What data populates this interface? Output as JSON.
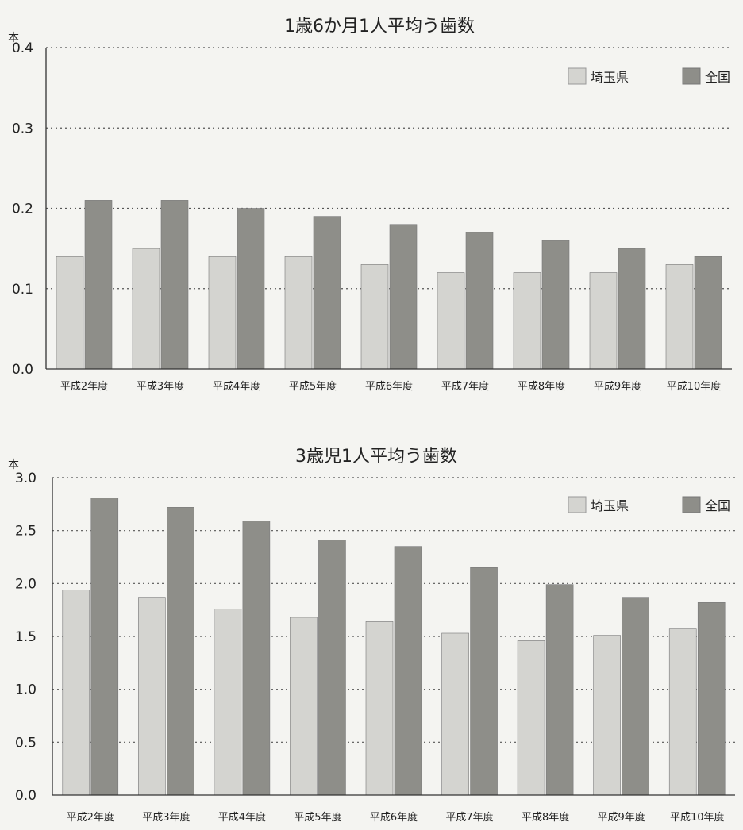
{
  "colors": {
    "saitama": "#d4d4d0",
    "national": "#8e8e89",
    "gridline": "#555555",
    "axis": "#333333",
    "text": "#222222"
  },
  "chart_data": [
    {
      "type": "bar",
      "title": "1歳6か月1人平均う歯数",
      "ylabel": "本",
      "ylim": [
        0,
        0.4
      ],
      "yticks": [
        "0.0",
        "0.1",
        "0.2",
        "0.3",
        "0.4"
      ],
      "grid": true,
      "legend_position": "top-right",
      "categories": [
        "平成2年度",
        "平成3年度",
        "平成4年度",
        "平成5年度",
        "平成6年度",
        "平成7年度",
        "平成8年度",
        "平成9年度",
        "平成10年度"
      ],
      "series": [
        {
          "name": "埼玉県",
          "values": [
            0.14,
            0.15,
            0.14,
            0.14,
            0.13,
            0.12,
            0.12,
            0.12,
            0.13
          ]
        },
        {
          "name": "全国",
          "values": [
            0.21,
            0.21,
            0.2,
            0.19,
            0.18,
            0.17,
            0.16,
            0.15,
            0.14
          ]
        }
      ]
    },
    {
      "type": "bar",
      "title": "3歳児1人平均う歯数",
      "ylabel": "本",
      "ylim": [
        0,
        3.0
      ],
      "yticks": [
        "0.0",
        "0.5",
        "1.0",
        "1.5",
        "2.0",
        "2.5",
        "3.0"
      ],
      "grid": true,
      "legend_position": "top-right",
      "categories": [
        "平成2年度",
        "平成3年度",
        "平成4年度",
        "平成5年度",
        "平成6年度",
        "平成7年度",
        "平成8年度",
        "平成9年度",
        "平成10年度"
      ],
      "series": [
        {
          "name": "埼玉県",
          "values": [
            1.94,
            1.87,
            1.76,
            1.68,
            1.64,
            1.53,
            1.46,
            1.51,
            1.57
          ]
        },
        {
          "name": "全国",
          "values": [
            2.81,
            2.72,
            2.59,
            2.41,
            2.35,
            2.15,
            1.99,
            1.87,
            1.82
          ]
        }
      ]
    }
  ]
}
